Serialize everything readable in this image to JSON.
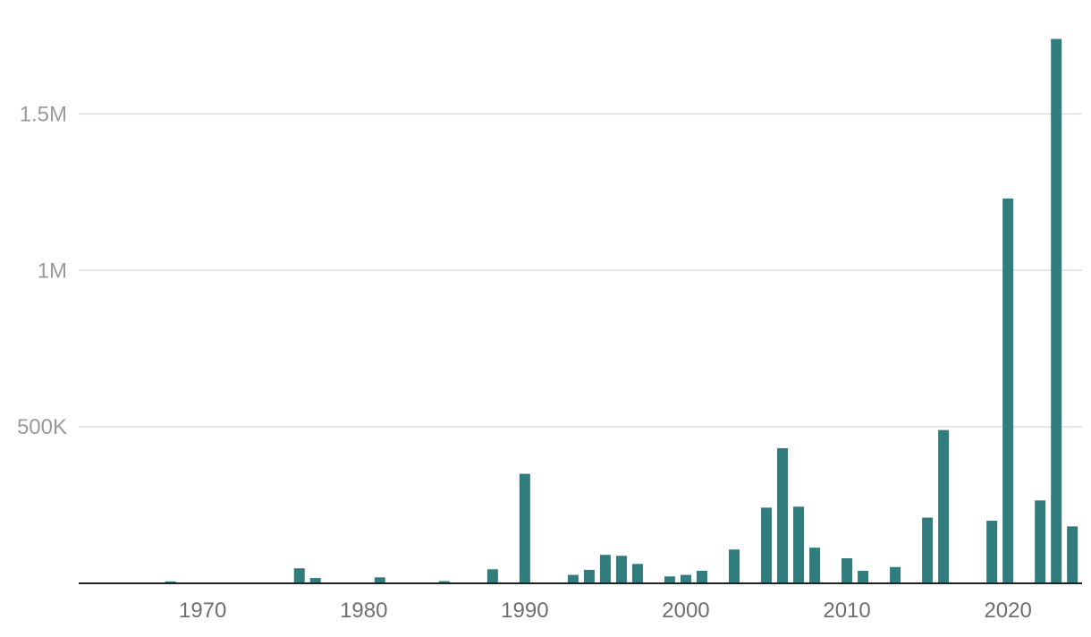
{
  "chart_data": {
    "type": "bar",
    "title": "",
    "xlabel": "",
    "ylabel": "",
    "ylim": [
      0,
      1750000
    ],
    "xlim": [
      1962.3,
      2024.6
    ],
    "grid": true,
    "colors": {
      "bar": "#317d7d",
      "grid": "#dddddd",
      "axis": "#222222"
    },
    "y_ticks": [
      {
        "value": 500000,
        "label": "500K"
      },
      {
        "value": 1000000,
        "label": "1M"
      },
      {
        "value": 1500000,
        "label": "1.5M"
      }
    ],
    "x_ticks": [
      {
        "value": 1970,
        "label": "1970"
      },
      {
        "value": 1980,
        "label": "1980"
      },
      {
        "value": 1990,
        "label": "1990"
      },
      {
        "value": 2000,
        "label": "2000"
      },
      {
        "value": 2010,
        "label": "2010"
      },
      {
        "value": 2020,
        "label": "2020"
      }
    ],
    "points": [
      {
        "x": 1968,
        "y": 6000
      },
      {
        "x": 1976,
        "y": 48000
      },
      {
        "x": 1977,
        "y": 17000
      },
      {
        "x": 1981,
        "y": 19000
      },
      {
        "x": 1985,
        "y": 7000
      },
      {
        "x": 1988,
        "y": 45000
      },
      {
        "x": 1990,
        "y": 350000
      },
      {
        "x": 1993,
        "y": 27000
      },
      {
        "x": 1994,
        "y": 43000
      },
      {
        "x": 1995,
        "y": 91000
      },
      {
        "x": 1996,
        "y": 88000
      },
      {
        "x": 1997,
        "y": 62000
      },
      {
        "x": 1999,
        "y": 22000
      },
      {
        "x": 2000,
        "y": 27000
      },
      {
        "x": 2001,
        "y": 40000
      },
      {
        "x": 2003,
        "y": 108000
      },
      {
        "x": 2005,
        "y": 242000
      },
      {
        "x": 2006,
        "y": 432000
      },
      {
        "x": 2007,
        "y": 245000
      },
      {
        "x": 2008,
        "y": 114000
      },
      {
        "x": 2010,
        "y": 80000
      },
      {
        "x": 2011,
        "y": 40000
      },
      {
        "x": 2013,
        "y": 52000
      },
      {
        "x": 2015,
        "y": 210000
      },
      {
        "x": 2016,
        "y": 490000
      },
      {
        "x": 2019,
        "y": 200000
      },
      {
        "x": 2020,
        "y": 1230000
      },
      {
        "x": 2022,
        "y": 265000
      },
      {
        "x": 2023,
        "y": 1740000
      },
      {
        "x": 2024,
        "y": 182000
      }
    ]
  }
}
